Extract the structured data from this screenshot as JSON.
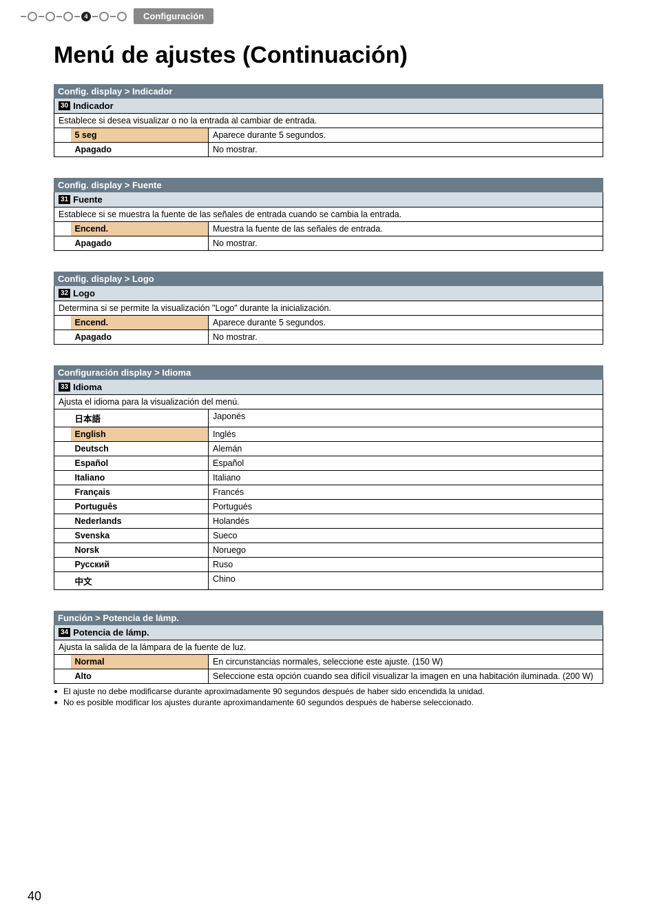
{
  "header": {
    "section_label": "Configuración",
    "step_number": "4"
  },
  "page_title": "Menú de ajustes (Continuación)",
  "page_number": "40",
  "blocks": [
    {
      "crumb": "Config. display > Indicador",
      "num": "30",
      "name": "Indicador",
      "desc": "Establece si desea visualizar o no la entrada al cambiar de entrada.",
      "options": [
        {
          "label": "5 seg",
          "default": true,
          "text": "Aparece durante 5 segundos."
        },
        {
          "label": "Apagado",
          "default": false,
          "text": "No mostrar."
        }
      ]
    },
    {
      "crumb": "Config. display > Fuente",
      "num": "31",
      "name": "Fuente",
      "desc": "Establece si se muestra la fuente de las señales de entrada cuando se cambia la entrada.",
      "options": [
        {
          "label": "Encend.",
          "default": true,
          "text": "Muestra la fuente de las señales de entrada."
        },
        {
          "label": "Apagado",
          "default": false,
          "text": "No mostrar."
        }
      ]
    },
    {
      "crumb": "Config. display > Logo",
      "num": "32",
      "name": "Logo",
      "desc": "Determina si se permite la visualización \"Logo\" durante la inicialización.",
      "options": [
        {
          "label": "Encend.",
          "default": true,
          "text": "Aparece durante 5 segundos."
        },
        {
          "label": "Apagado",
          "default": false,
          "text": "No mostrar."
        }
      ]
    },
    {
      "crumb": "Configuración display > Idioma",
      "num": "33",
      "name": "Idioma",
      "desc": "Ajusta el idioma para la visualización del menú.",
      "options": [
        {
          "label": "日本語",
          "default": false,
          "text": "Japonés"
        },
        {
          "label": "English",
          "default": true,
          "text": "Inglés"
        },
        {
          "label": "Deutsch",
          "default": false,
          "text": "Alemán"
        },
        {
          "label": "Español",
          "default": false,
          "text": "Español"
        },
        {
          "label": "Italiano",
          "default": false,
          "text": "Italiano"
        },
        {
          "label": "Français",
          "default": false,
          "text": "Francés"
        },
        {
          "label": "Português",
          "default": false,
          "text": "Portugués"
        },
        {
          "label": "Nederlands",
          "default": false,
          "text": "Holandés"
        },
        {
          "label": "Svenska",
          "default": false,
          "text": "Sueco"
        },
        {
          "label": "Norsk",
          "default": false,
          "text": "Noruego"
        },
        {
          "label": "Русский",
          "default": false,
          "text": "Ruso"
        },
        {
          "label": "中文",
          "default": false,
          "text": "Chino"
        }
      ]
    },
    {
      "crumb": "Función > Potencia de lámp.",
      "num": "34",
      "name": "Potencia de lámp.",
      "desc": "Ajusta la salida de la lámpara de la fuente de luz.",
      "options": [
        {
          "label": "Normal",
          "default": true,
          "text": "En circunstancias normales, seleccione este ajuste. (150 W)"
        },
        {
          "label": "Alto",
          "default": false,
          "text": "Seleccione esta opción cuando sea difícil visualizar la imagen en una habitación iluminada. (200 W)"
        }
      ],
      "notes": [
        "El ajuste no debe modificarse durante aproximadamente 90 segundos después de haber sido encendida la unidad.",
        "No es posible modificar los ajustes durante aproximandamente 60 segundos después de haberse seleccionado."
      ]
    }
  ]
}
